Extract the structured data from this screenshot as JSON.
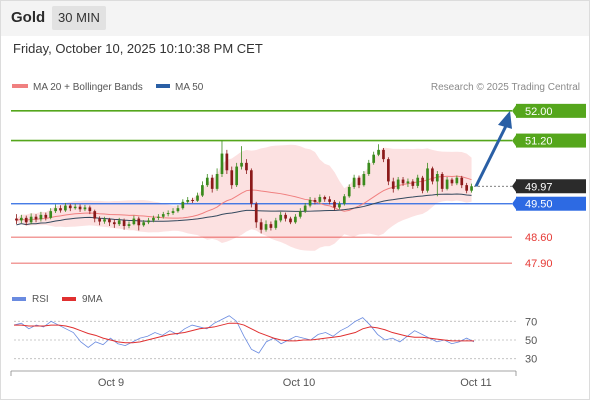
{
  "header": {
    "title": "Gold",
    "interval": "30 MIN",
    "timestamp": "Friday, October 10, 2025 10:10:38 PM CET"
  },
  "legend": {
    "bollinger": "MA 20 + Bollinger Bands",
    "ma50": "MA 50",
    "credit": "Research © 2025 Trading Central"
  },
  "rsi_legend": {
    "rsi": "RSI",
    "ma": "9MA"
  },
  "colors": {
    "up": "#3a8a1c",
    "down": "#8b1a1a",
    "resistance": "#55a61c",
    "support": "#e53935",
    "pivot": "#2d6ae3",
    "current": "#2b2b2b",
    "ma20": "#f08080",
    "ma50": "#34495e",
    "band": "#fcdcdc",
    "arrow": "#2a5fa5",
    "rsi": "#6a8be0",
    "rsi_ma": "#e03030"
  },
  "chart_data": [
    {
      "type": "candlestick",
      "title": "Gold",
      "x_ticks": [
        "Oct 9",
        "Oct 10",
        "Oct 11"
      ],
      "ylim": [
        47.5,
        52.4
      ],
      "levels": [
        {
          "value": 52.0,
          "label": "52.00",
          "kind": "resistance"
        },
        {
          "value": 51.2,
          "label": "51.20",
          "kind": "resistance"
        },
        {
          "value": 49.97,
          "label": "49.97",
          "kind": "current"
        },
        {
          "value": 49.5,
          "label": "49.50",
          "kind": "pivot"
        },
        {
          "value": 48.6,
          "label": "48.60",
          "kind": "support"
        },
        {
          "value": 47.9,
          "label": "47.90",
          "kind": "support"
        }
      ],
      "candles": [
        [
          49.1,
          49.05,
          49.22,
          48.95
        ],
        [
          49.05,
          49.12,
          49.2,
          48.98
        ],
        [
          49.12,
          49.0,
          49.18,
          48.92
        ],
        [
          49.0,
          49.15,
          49.24,
          48.95
        ],
        [
          49.15,
          49.08,
          49.22,
          49.0
        ],
        [
          49.08,
          49.2,
          49.28,
          49.02
        ],
        [
          49.2,
          49.12,
          49.26,
          49.05
        ],
        [
          49.12,
          49.3,
          49.38,
          49.08
        ],
        [
          49.3,
          49.38,
          49.48,
          49.25
        ],
        [
          49.38,
          49.32,
          49.46,
          49.26
        ],
        [
          49.32,
          49.45,
          49.52,
          49.28
        ],
        [
          49.45,
          49.38,
          49.5,
          49.3
        ],
        [
          49.38,
          49.42,
          49.5,
          49.34
        ],
        [
          49.42,
          49.35,
          49.48,
          49.28
        ],
        [
          49.35,
          49.4,
          49.47,
          49.3
        ],
        [
          49.4,
          49.3,
          49.45,
          49.22
        ],
        [
          49.3,
          49.1,
          49.34,
          49.0
        ],
        [
          49.1,
          49.02,
          49.16,
          48.92
        ],
        [
          49.02,
          49.08,
          49.15,
          48.96
        ],
        [
          49.08,
          49.0,
          49.12,
          48.9
        ],
        [
          49.0,
          48.95,
          49.08,
          48.85
        ],
        [
          48.95,
          49.05,
          49.12,
          48.9
        ],
        [
          49.05,
          48.9,
          49.1,
          48.8
        ],
        [
          48.9,
          48.95,
          49.02,
          48.84
        ],
        [
          48.95,
          49.1,
          49.18,
          48.92
        ],
        [
          49.1,
          48.92,
          49.15,
          48.78
        ],
        [
          48.92,
          49.0,
          49.06,
          48.88
        ],
        [
          49.0,
          49.05,
          49.12,
          48.95
        ],
        [
          49.05,
          49.12,
          49.18,
          49.0
        ],
        [
          49.12,
          49.15,
          49.22,
          49.06
        ],
        [
          49.15,
          49.22,
          49.28,
          49.1
        ],
        [
          49.22,
          49.25,
          49.32,
          49.16
        ],
        [
          49.25,
          49.3,
          49.38,
          49.2
        ],
        [
          49.3,
          49.38,
          49.46,
          49.26
        ],
        [
          49.38,
          49.55,
          49.62,
          49.34
        ],
        [
          49.55,
          49.6,
          49.68,
          49.5
        ],
        [
          49.6,
          49.58,
          49.66,
          49.52
        ],
        [
          49.58,
          49.72,
          49.8,
          49.55
        ],
        [
          49.72,
          50.0,
          50.1,
          49.68
        ],
        [
          50.0,
          50.2,
          50.3,
          49.95
        ],
        [
          50.2,
          49.9,
          50.28,
          49.8
        ],
        [
          49.9,
          50.3,
          50.45,
          49.85
        ],
        [
          50.3,
          50.85,
          51.2,
          50.22
        ],
        [
          50.85,
          50.4,
          50.95,
          50.3
        ],
        [
          50.4,
          50.0,
          50.5,
          49.9
        ],
        [
          50.0,
          50.5,
          50.6,
          49.95
        ],
        [
          50.5,
          50.6,
          51.05,
          50.42
        ],
        [
          50.6,
          50.4,
          50.7,
          50.3
        ],
        [
          50.4,
          49.5,
          50.45,
          49.4
        ],
        [
          49.5,
          49.0,
          49.55,
          48.85
        ],
        [
          49.0,
          48.8,
          49.1,
          48.7
        ],
        [
          48.8,
          48.95,
          49.05,
          48.75
        ],
        [
          48.95,
          48.85,
          49.02,
          48.78
        ],
        [
          48.85,
          49.05,
          49.12,
          48.8
        ],
        [
          49.05,
          49.2,
          49.28,
          49.0
        ],
        [
          49.2,
          49.1,
          49.26,
          49.02
        ],
        [
          49.1,
          49.0,
          49.15,
          48.95
        ],
        [
          49.0,
          49.15,
          49.22,
          48.96
        ],
        [
          49.15,
          49.3,
          49.38,
          49.1
        ],
        [
          49.3,
          49.45,
          49.52,
          49.25
        ],
        [
          49.45,
          49.6,
          49.68,
          49.4
        ],
        [
          49.6,
          49.55,
          49.66,
          49.48
        ],
        [
          49.55,
          49.68,
          49.75,
          49.5
        ],
        [
          49.68,
          49.62,
          49.72,
          49.55
        ],
        [
          49.62,
          49.55,
          49.7,
          49.48
        ],
        [
          49.55,
          49.4,
          49.6,
          49.32
        ],
        [
          49.4,
          49.5,
          49.56,
          49.35
        ],
        [
          49.5,
          49.7,
          49.76,
          49.45
        ],
        [
          49.7,
          49.95,
          50.02,
          49.66
        ],
        [
          49.95,
          50.2,
          50.28,
          49.9
        ],
        [
          50.2,
          50.0,
          50.26,
          49.92
        ],
        [
          50.0,
          50.3,
          50.38,
          49.96
        ],
        [
          50.3,
          50.6,
          50.68,
          50.25
        ],
        [
          50.6,
          50.82,
          50.9,
          50.55
        ],
        [
          50.82,
          50.95,
          51.1,
          50.78
        ],
        [
          50.95,
          50.7,
          51.0,
          50.62
        ],
        [
          50.7,
          50.1,
          50.75,
          50.0
        ],
        [
          50.1,
          49.9,
          50.2,
          49.8
        ],
        [
          49.9,
          50.15,
          50.22,
          49.86
        ],
        [
          50.15,
          50.05,
          50.22,
          49.98
        ],
        [
          50.05,
          50.1,
          50.18,
          49.95
        ],
        [
          50.1,
          49.98,
          50.16,
          49.9
        ],
        [
          49.98,
          50.2,
          50.28,
          49.92
        ],
        [
          50.2,
          49.85,
          50.25,
          49.78
        ],
        [
          49.85,
          50.45,
          50.6,
          49.8
        ],
        [
          50.45,
          50.1,
          50.5,
          50.02
        ],
        [
          50.1,
          50.3,
          50.38,
          49.7
        ],
        [
          50.3,
          49.9,
          50.35,
          49.82
        ],
        [
          49.9,
          50.15,
          50.22,
          49.86
        ],
        [
          50.15,
          50.05,
          50.2,
          49.98
        ],
        [
          50.05,
          50.2,
          50.26,
          50.0
        ],
        [
          50.2,
          50.0,
          50.25,
          49.92
        ],
        [
          50.0,
          49.85,
          50.06,
          49.78
        ],
        [
          49.85,
          49.97,
          50.04,
          49.8
        ]
      ],
      "forecast_target": 52.0
    },
    {
      "type": "line",
      "title": "RSI",
      "yticks": [
        30,
        50,
        70
      ],
      "series": [
        {
          "name": "RSI",
          "values": [
            66,
            68,
            62,
            66,
            64,
            70,
            66,
            62,
            58,
            48,
            42,
            48,
            45,
            52,
            46,
            44,
            48,
            52,
            54,
            58,
            55,
            60,
            56,
            62,
            66,
            64,
            62,
            68,
            72,
            76,
            70,
            54,
            40,
            36,
            48,
            52,
            46,
            50,
            54,
            52,
            50,
            56,
            58,
            54,
            60,
            64,
            70,
            74,
            66,
            56,
            50,
            52,
            48,
            54,
            60,
            56,
            52,
            48,
            50,
            46,
            48,
            52,
            48
          ]
        },
        {
          "name": "9MA",
          "values": [
            66,
            66,
            65,
            65,
            65,
            66,
            66,
            65,
            63,
            60,
            57,
            55,
            52,
            50,
            48,
            47,
            47,
            48,
            50,
            52,
            54,
            56,
            57,
            58,
            60,
            62,
            63,
            64,
            66,
            68,
            68,
            66,
            62,
            58,
            55,
            52,
            50,
            49,
            49,
            50,
            50,
            51,
            52,
            53,
            54,
            56,
            58,
            62,
            64,
            63,
            61,
            58,
            56,
            54,
            53,
            53,
            52,
            51,
            50,
            49,
            49,
            49,
            49
          ]
        }
      ]
    }
  ]
}
